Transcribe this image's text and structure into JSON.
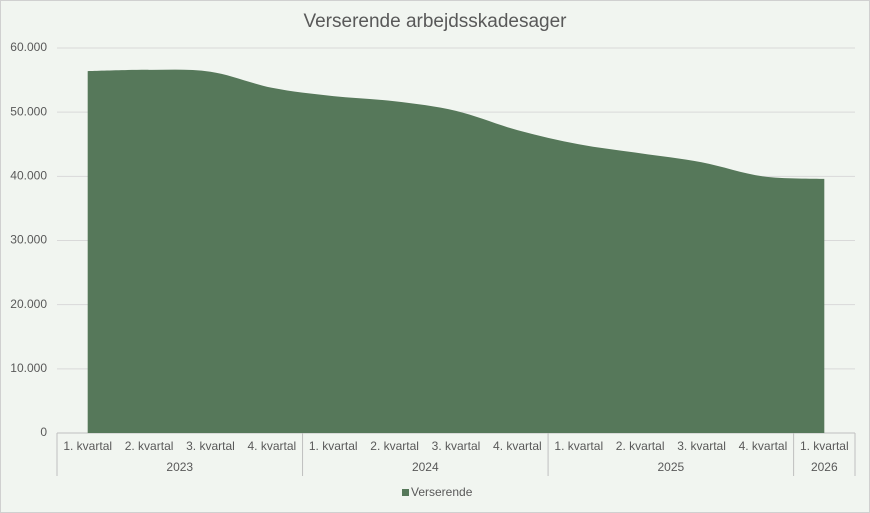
{
  "chart_data": {
    "type": "area",
    "title": "Verserende arbejdsskadesager",
    "category_groups": [
      {
        "name": "2023",
        "categories": [
          "1. kvartal",
          "2. kvartal",
          "3. kvartal",
          "4. kvartal"
        ]
      },
      {
        "name": "2024",
        "categories": [
          "1. kvartal",
          "2. kvartal",
          "3. kvartal",
          "4. kvartal"
        ]
      },
      {
        "name": "2025",
        "categories": [
          "1. kvartal",
          "2. kvartal",
          "3. kvartal",
          "4. kvartal"
        ]
      },
      {
        "name": "2026",
        "categories": [
          "1. kvartal"
        ]
      }
    ],
    "series": [
      {
        "name": "Verserende",
        "color": "#56785a",
        "values": [
          56400,
          56600,
          56300,
          53800,
          52500,
          51700,
          50200,
          47200,
          45000,
          43600,
          42200,
          40000,
          39600
        ]
      }
    ],
    "ylim": [
      0,
      60000
    ],
    "yticks": [
      0,
      {
        "value": 10000,
        "label": "10.000"
      },
      {
        "value": 20000,
        "label": "20.000"
      },
      {
        "value": 30000,
        "label": "30.000"
      },
      {
        "value": 40000,
        "label": "40.000"
      },
      {
        "value": 50000,
        "label": "50.000"
      },
      {
        "value": 60000,
        "label": "60.000"
      }
    ],
    "grid": true,
    "legend": "bottom"
  }
}
